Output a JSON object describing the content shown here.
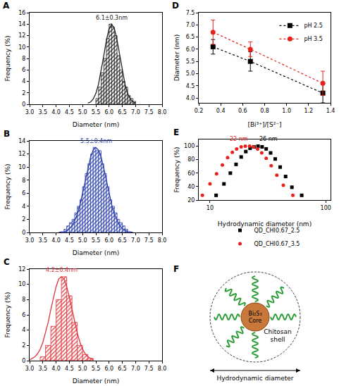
{
  "chart_data": [
    {
      "type": "histogram",
      "title": "A",
      "x_label": "Diameter (nm)",
      "y_label": "Frequency (%)",
      "color": "#222222",
      "bins": [
        5.5,
        5.6,
        5.7,
        5.8,
        5.9,
        6.0,
        6.1,
        6.2,
        6.3,
        6.4,
        6.5,
        6.6,
        6.7,
        6.8,
        6.9,
        7.0
      ],
      "counts": [
        1,
        3,
        5.5,
        8,
        11.5,
        14,
        13.5,
        12,
        8.5,
        6,
        4,
        3,
        1.5,
        1,
        0.5
      ],
      "fit": {
        "x": [
          5.2,
          5.3,
          5.4,
          5.5,
          5.6,
          5.7,
          5.8,
          5.9,
          6.0,
          6.1,
          6.2,
          6.3,
          6.4,
          6.5,
          6.6,
          6.7,
          6.8,
          6.9,
          7.0
        ],
        "values": [
          0.2,
          0.4,
          0.9,
          1.9,
          3.5,
          5.8,
          8.5,
          11.2,
          13.2,
          14,
          13.2,
          11.2,
          8.5,
          5.8,
          3.5,
          1.9,
          0.9,
          0.4,
          0.2
        ]
      },
      "annotations": [
        {
          "text": "6.1±0.3nm",
          "x": 6.1,
          "y": 14.3
        }
      ],
      "xlim": [
        3.0,
        8.0
      ],
      "xticks": [
        {
          "value": 3,
          "label": "3.0"
        },
        3.5,
        {
          "value": 4,
          "label": "4.0"
        },
        4.5,
        {
          "value": 5,
          "label": "5.0"
        },
        5.5,
        {
          "value": 6,
          "label": "6.0"
        },
        6.5,
        {
          "value": 7,
          "label": "7.0"
        },
        7.5,
        {
          "value": 8,
          "label": "8.0"
        }
      ],
      "ylim": [
        0,
        16
      ],
      "yticks": [
        0,
        2,
        4,
        6,
        8,
        10,
        12,
        14,
        16
      ]
    },
    {
      "type": "histogram",
      "title": "B",
      "x_label": "Diameter (nm)",
      "y_label": "Frequency (%)",
      "color": "#2b3fae",
      "bins": [
        4.3,
        4.4,
        4.5,
        4.6,
        4.7,
        4.8,
        4.9,
        5.0,
        5.1,
        5.2,
        5.3,
        5.4,
        5.5,
        5.6,
        5.7,
        5.8,
        5.9,
        6.0,
        6.1,
        6.2,
        6.3,
        6.4,
        6.5,
        6.6,
        6.7
      ],
      "counts": [
        0.5,
        1,
        1.5,
        2,
        3,
        4,
        5,
        7,
        9,
        10.5,
        12,
        13,
        12.5,
        12.5,
        10.5,
        9,
        7,
        5,
        4,
        3,
        2,
        1.5,
        1,
        0.5
      ],
      "fit": {
        "x": [
          4.1,
          4.2,
          4.3,
          4.4,
          4.5,
          4.6,
          4.7,
          4.8,
          4.9,
          5.0,
          5.1,
          5.2,
          5.3,
          5.4,
          5.5,
          5.6,
          5.7,
          5.8,
          5.9,
          6.0,
          6.1,
          6.2,
          6.3,
          6.4,
          6.5,
          6.6,
          6.7,
          6.8,
          6.9
        ],
        "values": [
          0.0,
          0.1,
          0.1,
          0.3,
          0.6,
          1.0,
          1.8,
          2.8,
          4.2,
          6.0,
          7.9,
          9.8,
          11.5,
          12.6,
          13,
          12.6,
          11.5,
          9.8,
          7.9,
          6.0,
          4.2,
          2.8,
          1.8,
          1.0,
          0.6,
          0.3,
          0.1,
          0.1,
          0.0
        ]
      },
      "annotations": [
        {
          "text": "5.5±0.4nm",
          "x": 5.5,
          "y": 13.2
        }
      ],
      "xlim": [
        3.0,
        8.0
      ],
      "xticks": [
        {
          "value": 3,
          "label": "3.0"
        },
        3.5,
        {
          "value": 4,
          "label": "4.0"
        },
        4.5,
        {
          "value": 5,
          "label": "5.0"
        },
        5.5,
        {
          "value": 6,
          "label": "6.0"
        },
        6.5,
        {
          "value": 7,
          "label": "7.0"
        },
        7.5,
        {
          "value": 8,
          "label": "8.0"
        }
      ],
      "ylim": [
        0,
        14
      ],
      "yticks": [
        0,
        2,
        4,
        6,
        8,
        10,
        12,
        14
      ]
    },
    {
      "type": "histogram",
      "title": "C",
      "x_label": "Diameter (nm)",
      "y_label": "Frequency (%)",
      "color": "#e0343a",
      "bins": [
        3.4,
        3.6,
        3.8,
        4.0,
        4.2,
        4.4,
        4.6,
        4.8,
        5.0,
        5.2,
        5.4
      ],
      "counts": [
        0.5,
        2,
        4.5,
        8,
        11,
        8.5,
        5,
        2,
        0.8,
        0.3
      ],
      "fit": {
        "x": [
          3.0,
          3.1,
          3.2,
          3.3,
          3.4,
          3.5,
          3.6,
          3.7,
          3.8,
          3.9,
          4.0,
          4.1,
          4.2,
          4.3,
          4.4,
          4.5,
          4.6,
          4.7,
          4.8,
          4.9,
          5.0,
          5.1,
          5.2,
          5.3,
          5.4
        ],
        "values": [
          0.1,
          0.3,
          0.5,
          0.9,
          1.5,
          2.4,
          3.6,
          5.0,
          6.7,
          8.3,
          9.7,
          10.7,
          11,
          10.7,
          9.7,
          8.3,
          6.7,
          5.0,
          3.6,
          2.4,
          1.5,
          0.9,
          0.5,
          0.3,
          0.1
        ]
      },
      "annotations": [
        {
          "text": "4.2±0.4nm",
          "x": 4.2,
          "y": 11.3
        }
      ],
      "xlim": [
        3.0,
        8.0
      ],
      "xticks": [
        {
          "value": 3,
          "label": "3.0"
        },
        3.5,
        {
          "value": 4,
          "label": "4.0"
        },
        4.5,
        {
          "value": 5,
          "label": "5.0"
        },
        5.5,
        {
          "value": 6,
          "label": "6.0"
        },
        6.5,
        {
          "value": 7,
          "label": "7.0"
        },
        7.5,
        {
          "value": 8,
          "label": "8.0"
        }
      ],
      "ylim": [
        0,
        12
      ],
      "yticks": [
        0,
        2,
        4,
        6,
        8,
        10,
        12
      ]
    },
    {
      "type": "line",
      "title": "D",
      "x_label": "[Bi³⁺]/[S²⁻]",
      "y_label": "Diameter (nm)",
      "legend": "top right",
      "x": [
        0.33,
        0.67,
        1.33
      ],
      "series": [
        {
          "name": "pH 2.5",
          "color": "#000000",
          "marker": "square",
          "line_style": "dotted",
          "values": [
            6.1,
            5.5,
            4.2
          ],
          "error": [
            0.3,
            0.4,
            0.4
          ]
        },
        {
          "name": "pH 3.5",
          "color": "#e8211c",
          "marker": "circle",
          "line_style": "dotted",
          "values": [
            6.7,
            6.0,
            4.6
          ],
          "error": [
            0.5,
            0.3,
            0.5
          ]
        }
      ],
      "xlim": [
        0.2,
        1.4
      ],
      "xticks": [
        0.2,
        0.4,
        0.6,
        0.8,
        {
          "value": 1,
          "label": "1.0"
        },
        1.2,
        1.4
      ],
      "ylim": [
        3.8,
        7.5
      ],
      "yticks": [
        {
          "value": 4,
          "label": "4.0"
        },
        4.5,
        {
          "value": 5,
          "label": "5.0"
        },
        5.5,
        {
          "value": 6,
          "label": "6.0"
        },
        6.5,
        {
          "value": 7,
          "label": "7.0"
        },
        7.5
      ]
    },
    {
      "type": "scatter",
      "title": "E",
      "x_label": "Hydrodynamic diameter (nm)",
      "y_label": "Frequency (%)",
      "log": "x",
      "legend": "bottom",
      "series": [
        {
          "name": "QD_CHI0.67_2.5",
          "color": "#000000",
          "marker": "square",
          "x": [
            11.3,
            13.2,
            15.0,
            16.8,
            18.6,
            20.4,
            22.2,
            24.0,
            26.0,
            28.2,
            30.6,
            33.4,
            36.6,
            40.4,
            45.0,
            51.0,
            62.0
          ],
          "values": [
            27,
            44,
            60,
            73,
            84,
            92,
            97,
            99,
            100,
            99,
            96,
            90,
            81,
            69,
            55,
            39,
            27
          ]
        },
        {
          "name": "QD_CHI0.67_3.5",
          "color": "#e8211c",
          "marker": "circle",
          "x": [
            8.6,
            10.0,
            11.4,
            12.8,
            14.2,
            15.6,
            17.0,
            18.6,
            20.2,
            22.0,
            23.8,
            25.8,
            28.0,
            30.6,
            33.8,
            37.8,
            43.0,
            52.0
          ],
          "values": [
            27,
            44,
            59,
            72,
            83,
            91,
            96,
            99,
            100,
            100,
            99,
            96,
            90,
            82,
            71,
            57,
            42,
            27
          ]
        }
      ],
      "annotations": [
        {
          "text": "22 nm",
          "x": 22,
          "y": 104,
          "color": "#e8211c"
        },
        {
          "text": "26 nm",
          "x": 26,
          "y": 104,
          "color": "#000000"
        }
      ],
      "xlim": [
        8,
        110
      ],
      "xticks": [
        10,
        100
      ],
      "ylim": [
        20,
        110
      ],
      "yticks": [
        20,
        40,
        60,
        80,
        100
      ]
    }
  ],
  "diagram": {
    "title": "F",
    "core": "Bi₂S₃ Core",
    "shell": "Chitosan shell",
    "dimension": "Hydrodynamic diameter"
  }
}
